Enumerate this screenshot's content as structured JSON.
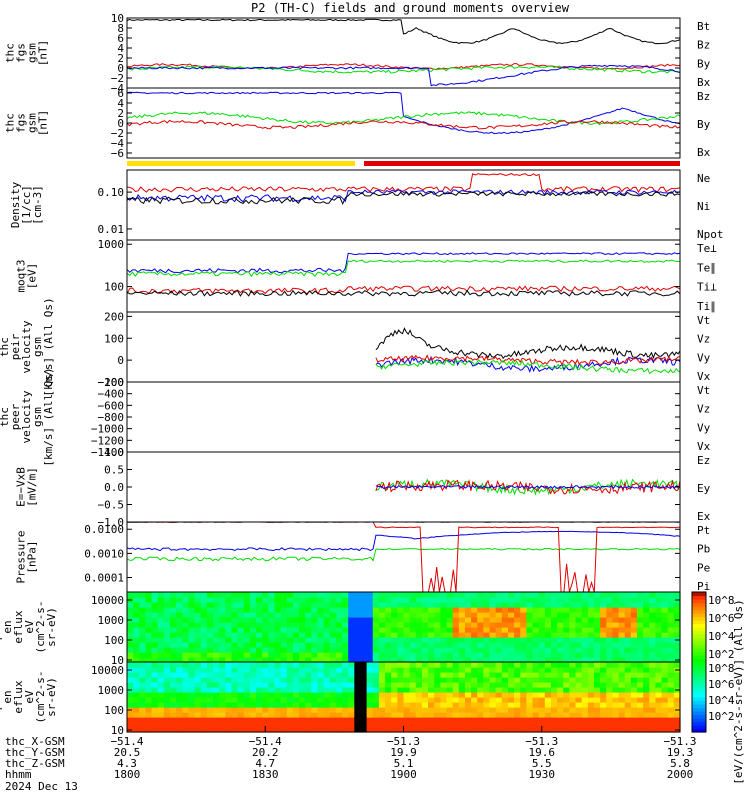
{
  "title": "P2 (TH-C) fields and ground moments overview",
  "colors": {
    "black": "#000000",
    "red": "#e00000",
    "green": "#00dd00",
    "blue": "#0000e8",
    "yellow": "#ffe000",
    "barRed": "#e00000"
  },
  "panels": [
    {
      "id": "fgs",
      "ylabel": [
        "thc",
        "fgs",
        "gsm",
        "[nT]"
      ],
      "ylim": [
        -4,
        10
      ],
      "ticks": [
        -4,
        -2,
        0,
        2,
        4,
        6,
        8,
        10
      ],
      "legend": [
        {
          "text": "Bt",
          "color": "black"
        },
        {
          "text": "Bz",
          "color": "red"
        },
        {
          "text": "By",
          "color": "green"
        },
        {
          "text": "Bx",
          "color": "blue"
        }
      ]
    },
    {
      "id": "fgsdbl",
      "ylabel": [
        "thc",
        "fgs",
        "gsm",
        "[nT]"
      ],
      "ylim": [
        -7,
        7
      ],
      "ticks": [
        -6,
        -4,
        -2,
        0,
        2,
        4,
        6
      ],
      "legend": [
        {
          "text": "Bz",
          "color": "red"
        },
        {
          "text": "By",
          "color": "green"
        },
        {
          "text": "Bx",
          "color": "blue"
        }
      ]
    },
    {
      "id": "density",
      "ylabel": [
        "Density",
        "[1/cc]",
        "[cm-3]"
      ],
      "scale": "log",
      "ticks": [
        0.01,
        0.1
      ],
      "tickLabels": [
        "0.01",
        "0.10"
      ],
      "legend": [
        {
          "text": "Ne",
          "color": "red"
        },
        {
          "text": "Ni",
          "color": "black"
        },
        {
          "text": "Npot",
          "color": "blue"
        }
      ]
    },
    {
      "id": "temp",
      "ylabel": [
        "moqt3",
        "[eV]"
      ],
      "scale": "log",
      "ticks": [
        100,
        1000
      ],
      "tickLabels": [
        "100",
        "1000"
      ],
      "legend": [
        {
          "text": "Te⊥",
          "color": "red"
        },
        {
          "text": "Te∥",
          "color": "black"
        },
        {
          "text": "Ti⊥",
          "color": "blue"
        },
        {
          "text": "Ti∥",
          "color": "green"
        }
      ]
    },
    {
      "id": "vi",
      "ylabel": [
        "thc",
        "peir",
        "velocity",
        "gsm",
        "[km/s] (All Qs)"
      ],
      "ylim": [
        -100,
        220
      ],
      "ticks": [
        -100,
        0,
        100,
        200
      ],
      "legend": [
        {
          "text": "Vt",
          "color": "black"
        },
        {
          "text": "Vz",
          "color": "red"
        },
        {
          "text": "Vy",
          "color": "green"
        },
        {
          "text": "Vx",
          "color": "blue"
        }
      ]
    },
    {
      "id": "ve",
      "ylabel": [
        "thc",
        "peer",
        "velocity",
        "gsm",
        "[km/s] (All Qs)"
      ],
      "ylim": [
        -1400,
        -200
      ],
      "ticks": [
        -1400,
        -1200,
        -1000,
        -800,
        -600,
        -400,
        -200
      ],
      "legend": [
        {
          "text": "Vt",
          "color": "black"
        },
        {
          "text": "Vz",
          "color": "red"
        },
        {
          "text": "Vy",
          "color": "green"
        },
        {
          "text": "Vx",
          "color": "blue"
        }
      ]
    },
    {
      "id": "efield",
      "ylabel": [
        "E=−VxB",
        "[mV/m]"
      ],
      "ylim": [
        -1,
        1
      ],
      "ticks": [
        -1.0,
        -0.5,
        0.0,
        0.5,
        1.0
      ],
      "tickLabels": [
        "−1.0",
        "−0.5",
        "0.0",
        "0.5",
        "1.0"
      ],
      "legend": [
        {
          "text": "Ez",
          "color": "red"
        },
        {
          "text": "Ey",
          "color": "green"
        },
        {
          "text": "Ex",
          "color": "blue"
        }
      ]
    },
    {
      "id": "pressure",
      "ylabel": [
        "Pressure",
        "[nPa]"
      ],
      "scale": "log",
      "ticks": [
        0.0001,
        0.001,
        0.01
      ],
      "tickLabels": [
        "0.0001",
        "0.0010",
        "0.0100"
      ],
      "legend": [
        {
          "text": "Pt",
          "color": "black"
        },
        {
          "text": "Pb",
          "color": "red"
        },
        {
          "text": "Pe",
          "color": "green"
        },
        {
          "text": "Pi",
          "color": "blue"
        }
      ]
    },
    {
      "id": "peir_spec",
      "ylabel": [
        "thc",
        "peir",
        "en",
        "eflux",
        "eV",
        "(cm^2-s-",
        "sr-eV)"
      ],
      "ticks": [
        10,
        100,
        1000,
        10000
      ],
      "tickLabels": [
        "10",
        "100",
        "1000",
        "10000"
      ]
    },
    {
      "id": "peer_spec",
      "ylabel": [
        "thc",
        "peer",
        "en",
        "eflux",
        "eV",
        "(cm^2-s-",
        "sr-eV)"
      ],
      "ticks": [
        10,
        100,
        1000,
        10000
      ],
      "tickLabels": [
        "10",
        "100",
        "1000",
        "10000"
      ]
    }
  ],
  "colorbar": {
    "label": "[eV/(cm^2-s-sr-eV)] (All Qs)",
    "upperTicks": [
      "10^8",
      "10^6",
      "10^4",
      "10^2"
    ],
    "lowerTicks": [
      "10^8",
      "10^6",
      "10^4",
      "10^2"
    ]
  },
  "xaxis": {
    "rows": [
      {
        "label": "thc_X-GSM",
        "values": [
          "−51.4",
          "−51.4",
          "−51.3",
          "−51.3",
          "−51.3"
        ]
      },
      {
        "label": "thc_Y-GSM",
        "values": [
          "20.5",
          "20.2",
          "19.9",
          "19.6",
          "19.3"
        ]
      },
      {
        "label": "thc_Z-GSM",
        "values": [
          "4.3",
          "4.7",
          "5.1",
          "5.5",
          "5.8"
        ]
      },
      {
        "label": "hhmm",
        "values": [
          "1800",
          "1830",
          "1900",
          "1930",
          "2000"
        ]
      }
    ],
    "date": "2024 Dec 13"
  },
  "chart_data": {
    "type": "line",
    "title": "P2 (TH-C) fields and ground moments overview",
    "x": [
      "1800",
      "1830",
      "1900",
      "1930",
      "2000"
    ],
    "xlabel": "hhmm",
    "series": [
      {
        "name": "Bt",
        "approx": "~10 nT until ~18:55, dips to ~4-7 nT 19:00-20:00"
      },
      {
        "name": "Bx",
        "approx": "~0 nT until 19:05, then drops to −4..−2 nT with recoveries"
      },
      {
        "name": "Density Ni",
        "approx": "0.05-0.15 cm^-3, rising to ~0.2-0.3 after 19:08"
      },
      {
        "name": "Vt ion",
        "approx": "0-200 km/s after 18:57, peak ~210 km/s near 19:03"
      }
    ]
  }
}
